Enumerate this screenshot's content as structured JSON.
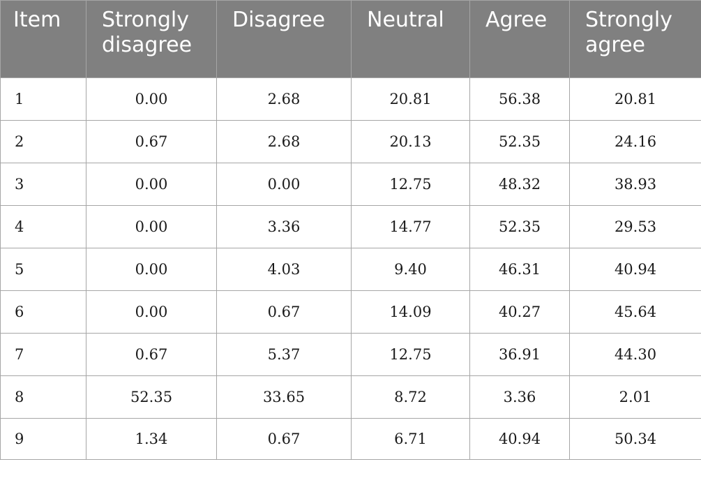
{
  "table": {
    "headers": [
      "Item",
      "Strongly disagree",
      "Disagree",
      "Neutral",
      "Agree",
      "Strongly agree"
    ],
    "rows": [
      [
        "1",
        "0.00",
        "2.68",
        "20.81",
        "56.38",
        "20.81"
      ],
      [
        "2",
        "0.67",
        "2.68",
        "20.13",
        "52.35",
        "24.16"
      ],
      [
        "3",
        "0.00",
        "0.00",
        "12.75",
        "48.32",
        "38.93"
      ],
      [
        "4",
        "0.00",
        "3.36",
        "14.77",
        "52.35",
        "29.53"
      ],
      [
        "5",
        "0.00",
        "4.03",
        "9.40",
        "46.31",
        "40.94"
      ],
      [
        "6",
        "0.00",
        "0.67",
        "14.09",
        "40.27",
        "45.64"
      ],
      [
        "7",
        "0.67",
        "5.37",
        "12.75",
        "36.91",
        "44.30"
      ],
      [
        "8",
        "52.35",
        "33.65",
        "8.72",
        "3.36",
        "2.01"
      ],
      [
        "9",
        "1.34",
        "0.67",
        "6.71",
        "40.94",
        "50.34"
      ]
    ]
  }
}
